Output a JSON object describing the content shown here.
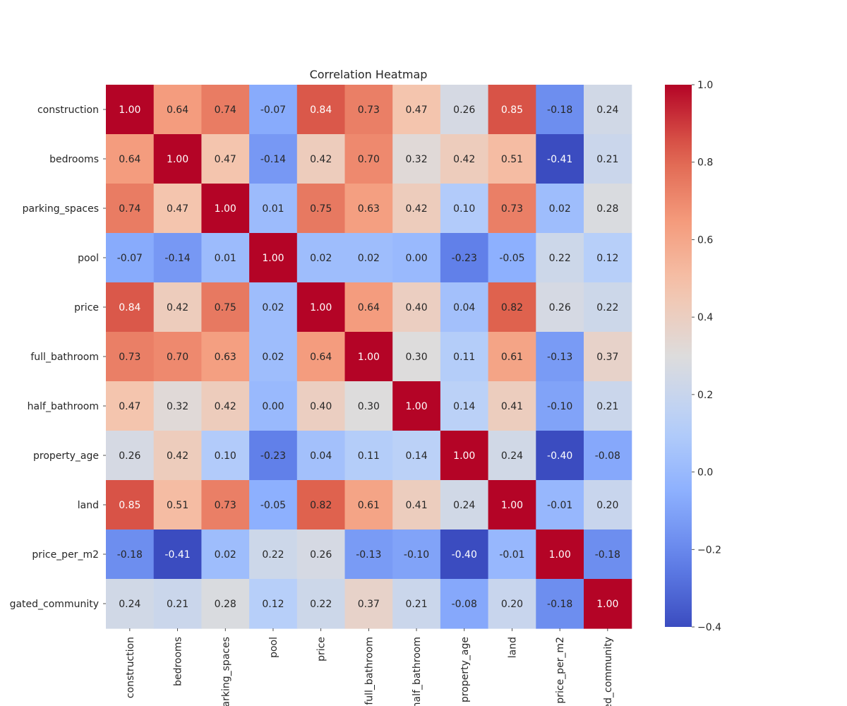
{
  "chart_data": {
    "type": "heatmap",
    "title": "Correlation Heatmap",
    "xlabel": "",
    "ylabel": "",
    "colormap": "coolwarm",
    "value_range": [
      -0.4,
      1.0
    ],
    "colorbar_ticks": [
      "1.0",
      "0.8",
      "0.6",
      "0.4",
      "0.2",
      "0.0",
      "−0.2",
      "−0.4"
    ],
    "colorbar_tick_values": [
      1.0,
      0.8,
      0.6,
      0.4,
      0.2,
      0.0,
      -0.2,
      -0.4
    ],
    "value_format": "2 decimals",
    "variables": [
      "construction",
      "bedrooms",
      "parking_spaces",
      "pool",
      "price",
      "full_bathroom",
      "half_bathroom",
      "property_age",
      "land",
      "price_per_m2",
      "gated_community"
    ],
    "labels": [
      [
        "1.00",
        "0.64",
        "0.74",
        "-0.07",
        "0.84",
        "0.73",
        "0.47",
        "0.26",
        "0.85",
        "-0.18",
        "0.24"
      ],
      [
        "0.64",
        "1.00",
        "0.47",
        "-0.14",
        "0.42",
        "0.70",
        "0.32",
        "0.42",
        "0.51",
        "-0.41",
        "0.21"
      ],
      [
        "0.74",
        "0.47",
        "1.00",
        "0.01",
        "0.75",
        "0.63",
        "0.42",
        "0.10",
        "0.73",
        "0.02",
        "0.28"
      ],
      [
        "-0.07",
        "-0.14",
        "0.01",
        "1.00",
        "0.02",
        "0.02",
        "0.00",
        "-0.23",
        "-0.05",
        "0.22",
        "0.12"
      ],
      [
        "0.84",
        "0.42",
        "0.75",
        "0.02",
        "1.00",
        "0.64",
        "0.40",
        "0.04",
        "0.82",
        "0.26",
        "0.22"
      ],
      [
        "0.73",
        "0.70",
        "0.63",
        "0.02",
        "0.64",
        "1.00",
        "0.30",
        "0.11",
        "0.61",
        "-0.13",
        "0.37"
      ],
      [
        "0.47",
        "0.32",
        "0.42",
        "0.00",
        "0.40",
        "0.30",
        "1.00",
        "0.14",
        "0.41",
        "-0.10",
        "0.21"
      ],
      [
        "0.26",
        "0.42",
        "0.10",
        "-0.23",
        "0.04",
        "0.11",
        "0.14",
        "1.00",
        "0.24",
        "-0.40",
        "-0.08"
      ],
      [
        "0.85",
        "0.51",
        "0.73",
        "-0.05",
        "0.82",
        "0.61",
        "0.41",
        "0.24",
        "1.00",
        "-0.01",
        "0.20"
      ],
      [
        "-0.18",
        "-0.41",
        "0.02",
        "0.22",
        "0.26",
        "-0.13",
        "-0.10",
        "-0.40",
        "-0.01",
        "1.00",
        "-0.18"
      ],
      [
        "0.24",
        "0.21",
        "0.28",
        "0.12",
        "0.22",
        "0.37",
        "0.21",
        "-0.08",
        "0.20",
        "-0.18",
        "1.00"
      ]
    ]
  }
}
